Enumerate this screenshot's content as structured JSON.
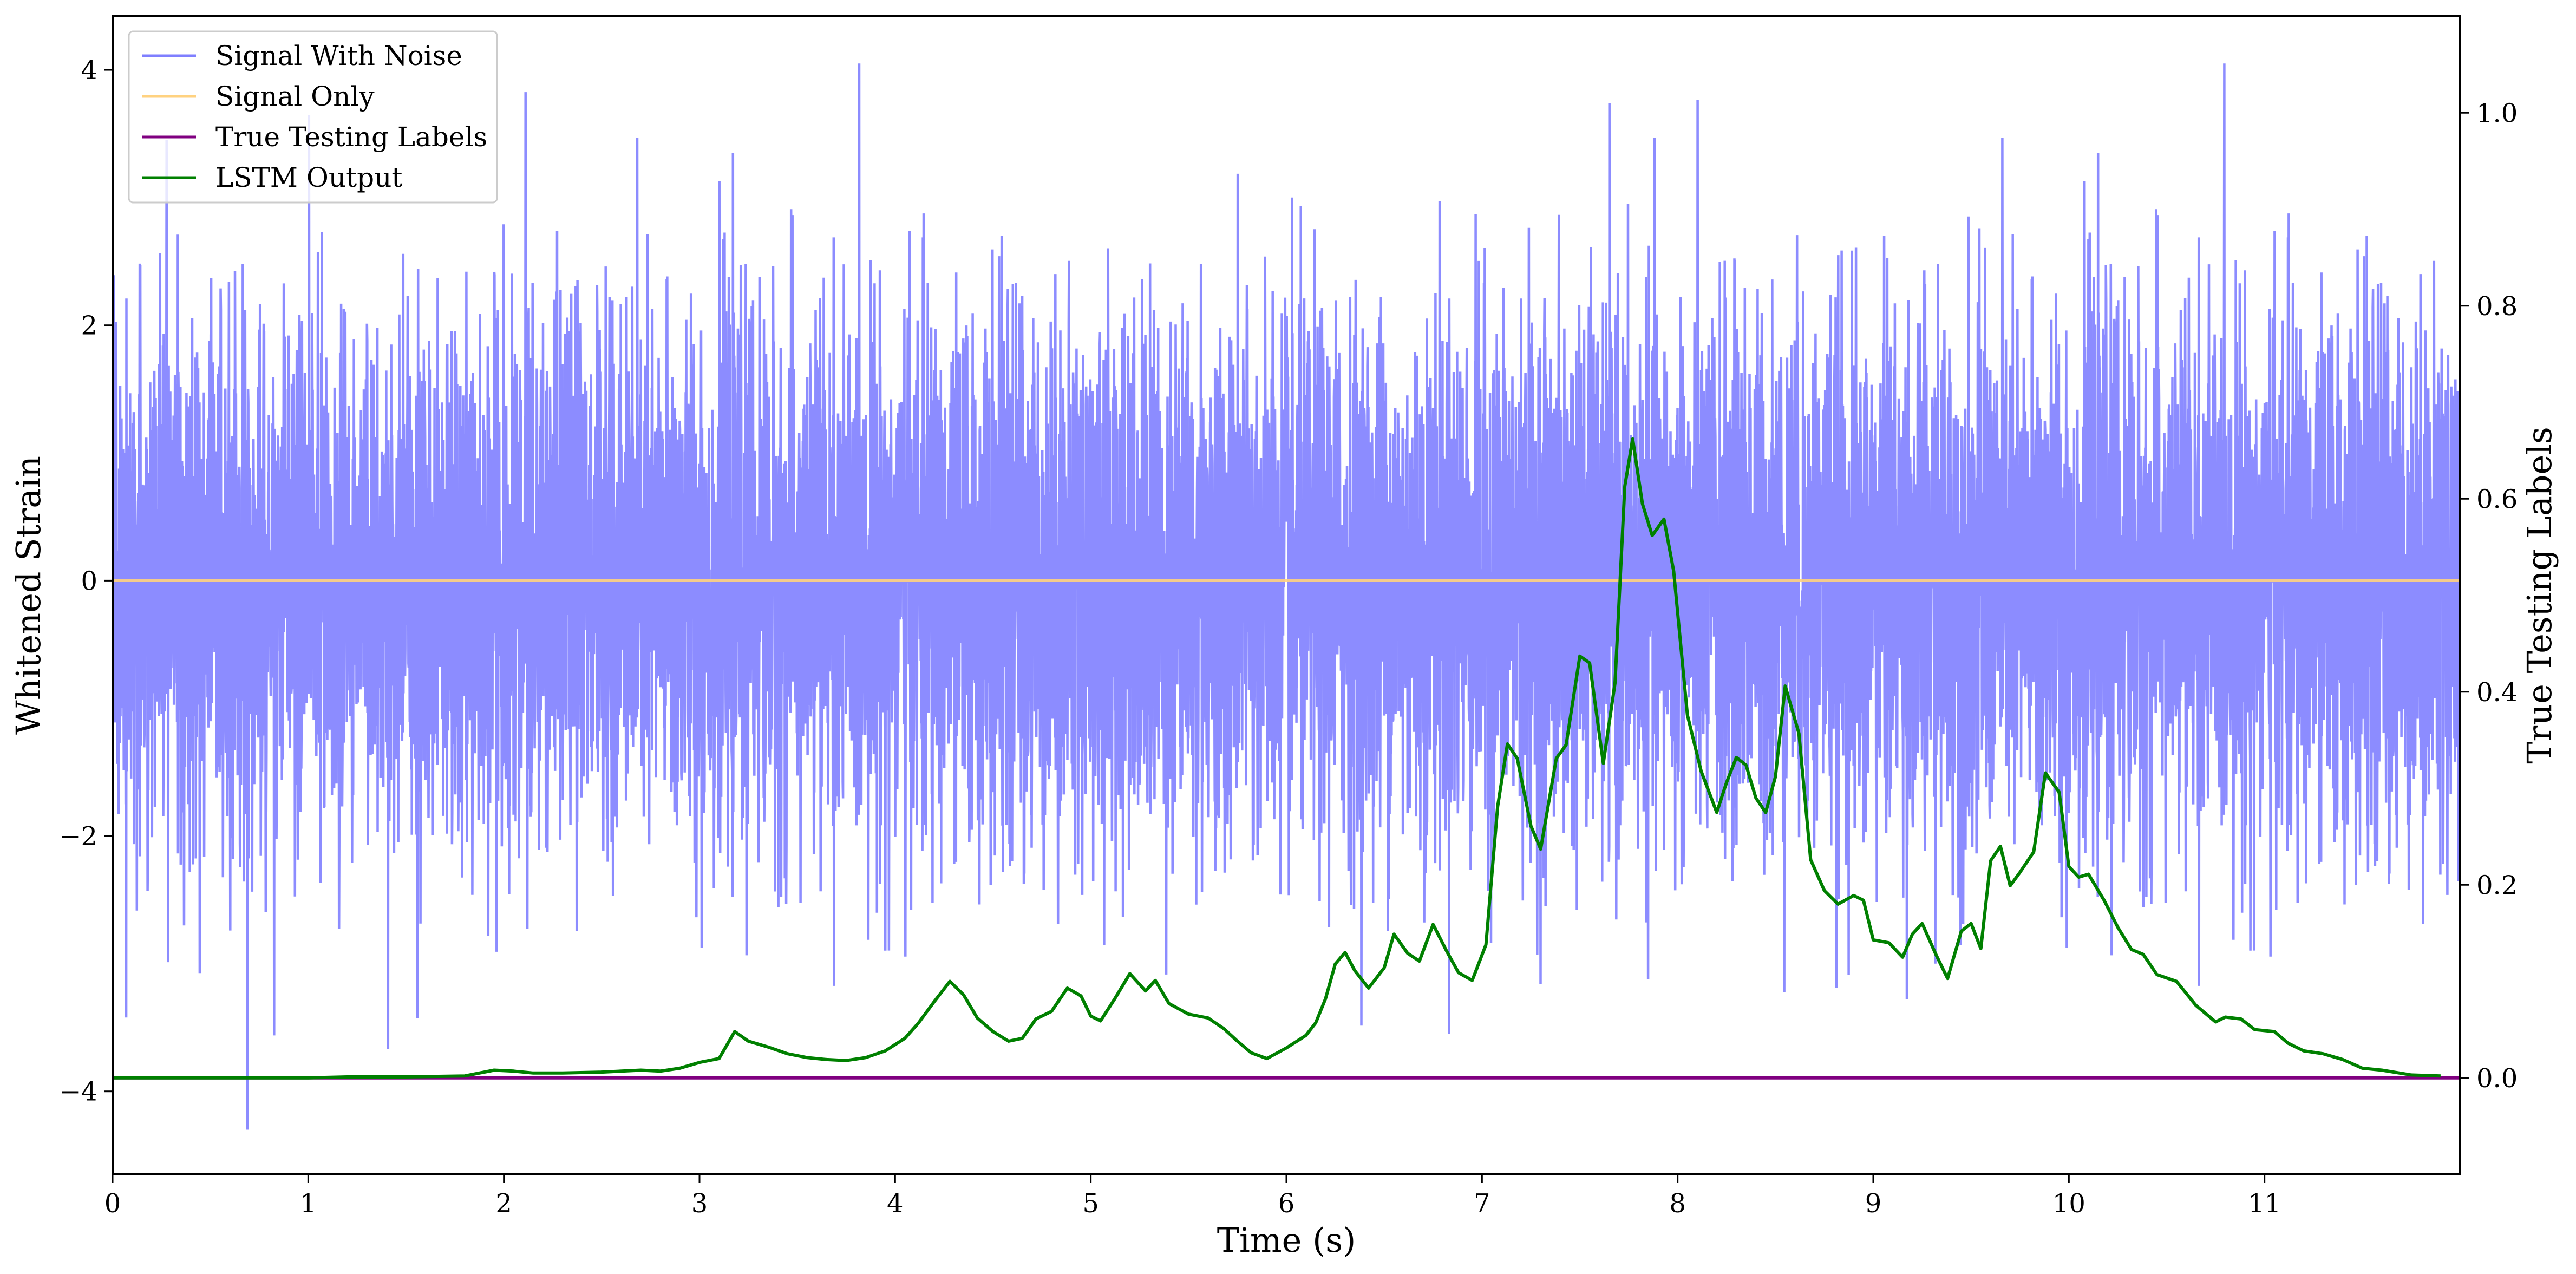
{
  "chart_data": {
    "type": "line",
    "xlabel": "Time (s)",
    "ylabel_left": "Whitened Strain",
    "ylabel_right": "True Testing Labels",
    "xlim": [
      0,
      12
    ],
    "ylim_left": [
      -4.65,
      4.42
    ],
    "ylim_right": [
      -0.1,
      1.1
    ],
    "x_ticks": [
      0,
      1,
      2,
      3,
      4,
      5,
      6,
      7,
      8,
      9,
      10,
      11
    ],
    "x_tick_labels": [
      "0",
      "1",
      "2",
      "3",
      "4",
      "5",
      "6",
      "7",
      "8",
      "9",
      "10",
      "11"
    ],
    "y_left_ticks": [
      -4,
      -2,
      0,
      2,
      4
    ],
    "y_left_tick_labels": [
      "−4",
      "−2",
      "0",
      "2",
      "4"
    ],
    "y_right_ticks": [
      0.0,
      0.2,
      0.4,
      0.6,
      0.8,
      1.0
    ],
    "y_right_tick_labels": [
      "0.0",
      "0.2",
      "0.4",
      "0.6",
      "0.8",
      "1.0"
    ],
    "grid": false,
    "legend_position": "top-left",
    "series": [
      {
        "name": "Signal With Noise",
        "axis": "left",
        "color": "#7f7fff",
        "noise": {
          "sigma": 1.0,
          "peak_min": -4.3,
          "peak_max": 4.05,
          "seed": 7
        }
      },
      {
        "name": "Signal Only",
        "axis": "left",
        "color": "#ffd280",
        "x": [
          0,
          12
        ],
        "y": [
          0,
          0
        ]
      },
      {
        "name": "True Testing Labels",
        "axis": "right",
        "color": "#800080",
        "x": [
          0,
          12
        ],
        "y": [
          0,
          0
        ]
      },
      {
        "name": "LSTM Output",
        "axis": "right",
        "color": "#008000",
        "x": [
          0,
          0.5,
          1.0,
          1.2,
          1.5,
          1.8,
          1.95,
          2.05,
          2.15,
          2.3,
          2.5,
          2.7,
          2.8,
          2.9,
          3.0,
          3.1,
          3.18,
          3.25,
          3.35,
          3.45,
          3.55,
          3.65,
          3.75,
          3.85,
          3.95,
          4.05,
          4.12,
          4.2,
          4.28,
          4.35,
          4.42,
          4.5,
          4.58,
          4.65,
          4.72,
          4.8,
          4.88,
          4.95,
          5.0,
          5.05,
          5.12,
          5.2,
          5.28,
          5.33,
          5.4,
          5.5,
          5.6,
          5.68,
          5.75,
          5.82,
          5.9,
          6.0,
          6.1,
          6.15,
          6.2,
          6.25,
          6.3,
          6.35,
          6.42,
          6.5,
          6.55,
          6.62,
          6.68,
          6.75,
          6.82,
          6.88,
          6.95,
          7.02,
          7.08,
          7.13,
          7.18,
          7.25,
          7.3,
          7.38,
          7.43,
          7.5,
          7.55,
          7.62,
          7.68,
          7.73,
          7.77,
          7.82,
          7.87,
          7.93,
          7.98,
          8.05,
          8.12,
          8.2,
          8.25,
          8.3,
          8.35,
          8.4,
          8.45,
          8.5,
          8.55,
          8.62,
          8.68,
          8.75,
          8.82,
          8.9,
          8.95,
          9.0,
          9.08,
          9.15,
          9.2,
          9.25,
          9.32,
          9.38,
          9.45,
          9.5,
          9.55,
          9.6,
          9.65,
          9.7,
          9.75,
          9.82,
          9.88,
          9.95,
          10.0,
          10.05,
          10.1,
          10.18,
          10.25,
          10.32,
          10.38,
          10.45,
          10.55,
          10.65,
          10.75,
          10.8,
          10.88,
          10.95,
          11.05,
          11.12,
          11.2,
          11.3,
          11.4,
          11.5,
          11.6,
          11.75,
          11.9
        ],
        "y": [
          0.0,
          0.0,
          0.0,
          0.001,
          0.001,
          0.002,
          0.008,
          0.007,
          0.005,
          0.005,
          0.006,
          0.008,
          0.007,
          0.01,
          0.016,
          0.02,
          0.048,
          0.038,
          0.032,
          0.025,
          0.021,
          0.019,
          0.018,
          0.021,
          0.028,
          0.041,
          0.057,
          0.079,
          0.1,
          0.086,
          0.062,
          0.048,
          0.038,
          0.041,
          0.061,
          0.069,
          0.093,
          0.085,
          0.064,
          0.059,
          0.081,
          0.108,
          0.09,
          0.101,
          0.077,
          0.066,
          0.062,
          0.051,
          0.038,
          0.026,
          0.02,
          0.031,
          0.044,
          0.057,
          0.082,
          0.118,
          0.13,
          0.111,
          0.093,
          0.114,
          0.149,
          0.129,
          0.121,
          0.159,
          0.131,
          0.109,
          0.101,
          0.138,
          0.281,
          0.346,
          0.331,
          0.261,
          0.237,
          0.331,
          0.345,
          0.437,
          0.43,
          0.326,
          0.409,
          0.613,
          0.662,
          0.595,
          0.562,
          0.579,
          0.525,
          0.376,
          0.318,
          0.275,
          0.306,
          0.332,
          0.324,
          0.29,
          0.275,
          0.312,
          0.406,
          0.357,
          0.226,
          0.194,
          0.18,
          0.189,
          0.184,
          0.143,
          0.14,
          0.125,
          0.149,
          0.16,
          0.128,
          0.103,
          0.152,
          0.16,
          0.134,
          0.225,
          0.24,
          0.199,
          0.213,
          0.234,
          0.316,
          0.296,
          0.219,
          0.208,
          0.211,
          0.184,
          0.156,
          0.133,
          0.128,
          0.107,
          0.1,
          0.075,
          0.058,
          0.063,
          0.061,
          0.05,
          0.048,
          0.036,
          0.028,
          0.025,
          0.019,
          0.01,
          0.008,
          0.003,
          0.002
        ]
      }
    ]
  }
}
